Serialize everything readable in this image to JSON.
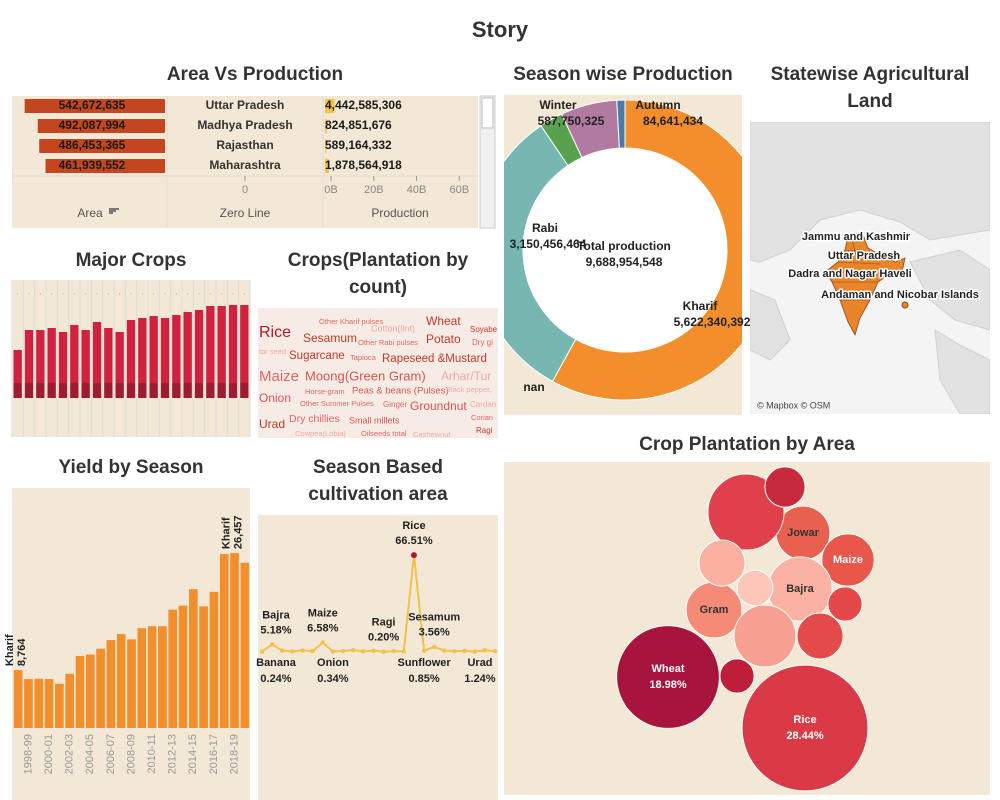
{
  "title": "Story",
  "chart_data": [
    {
      "type": "hbar",
      "title": "Area Vs Production",
      "categories": [
        "Uttar Pradesh",
        "Madhya Pradesh",
        "Rajasthan",
        "Maharashtra"
      ],
      "series": [
        {
          "name": "Area",
          "color": "#c4461f",
          "values": [
            542672635,
            492087994,
            486453365,
            461939552
          ],
          "value_labels": [
            "542,672,635",
            "492,087,994",
            "486,453,365",
            "461,939,552"
          ]
        },
        {
          "name": "Production",
          "color": "#f5c342",
          "values": [
            4442585306,
            824851676,
            589164332,
            1878564918
          ],
          "value_labels": [
            "4,442,585,306",
            "824,851,676",
            "589,164,332",
            "1,878,564,918"
          ]
        }
      ],
      "zero_line": "Zero Line",
      "zero_ticks": [
        0
      ],
      "xlim": [
        0,
        65000000000
      ],
      "xticks": [
        {
          "value": 0,
          "label": "0B"
        },
        {
          "value": 20000000000,
          "label": "20B"
        },
        {
          "value": 40000000000,
          "label": "40B"
        },
        {
          "value": 60000000000,
          "label": "60B"
        }
      ],
      "x2lim": [
        0,
        580000000
      ]
    },
    {
      "type": "stacked",
      "title": "Major Crops",
      "categories": [
        null,
        null,
        null,
        null,
        null,
        null,
        null,
        null,
        null,
        null,
        null,
        null,
        null,
        null,
        null,
        null,
        null,
        null,
        null,
        null,
        null
      ],
      "series": [
        {
          "color": "#9e1b32",
          "values": [
            15,
            15,
            15,
            15,
            15,
            15,
            15,
            15,
            15,
            15,
            15,
            15,
            15,
            15,
            15,
            15,
            15,
            15,
            15,
            15,
            15
          ]
        },
        {
          "color": "#d0223f",
          "values": [
            33,
            53,
            53,
            55,
            51,
            58,
            53,
            61,
            55,
            51,
            63,
            65,
            67,
            65,
            68,
            71,
            73,
            77,
            77,
            78,
            78
          ]
        }
      ],
      "ylim": [
        0,
        100
      ]
    },
    {
      "type": "wordcloud",
      "title": "Crops(Plantation by count)",
      "words": [
        "Rice",
        "Sesamum",
        "Cotton(lint)",
        "Wheat",
        "Soyabe",
        "Other Kharif pulses",
        "Potato",
        "Other Rabi pulses",
        "Dry gi",
        "tor seed",
        "Sugarcane",
        "Tapioca",
        "Rapeseed &Mustard",
        "Maize",
        "Moong(Green Gram)",
        "Arhar/Tur",
        "Horse-gram",
        "Peas & beans (Pulses)",
        "Black pepper,",
        "Onion",
        "Other Summer Pulses",
        "Ginger",
        "Groundnut",
        "Cardan",
        "Dry chillies",
        "Small millets",
        "Corian",
        "Urad",
        "Cowpea(Lobia)",
        "Oilseeds total",
        "Cashewnut",
        "Ragi"
      ],
      "values": [
        160,
        120,
        90,
        120,
        80,
        75,
        120,
        75,
        80,
        75,
        115,
        75,
        115,
        150,
        130,
        120,
        75,
        95,
        75,
        120,
        75,
        80,
        120,
        80,
        105,
        90,
        75,
        120,
        75,
        75,
        75,
        80
      ],
      "colors": [
        "#b2182b",
        "#c0392b",
        "#f1a7a7",
        "#c0392b",
        "#c0392b",
        "#e06666",
        "#c0392b",
        "#e06666",
        "#e06666",
        "#f1a7a7",
        "#c0392b",
        "#e06666",
        "#c0392b",
        "#e06666",
        "#d9534f",
        "#f1a7a7",
        "#e06666",
        "#d9534f",
        "#f1a7a7",
        "#d9534f",
        "#e06666",
        "#e06666",
        "#d9534f",
        "#f1a7a7",
        "#e06666",
        "#d9534f",
        "#e06666",
        "#c0392b",
        "#f1a7a7",
        "#e06666",
        "#f1a7a7",
        "#c0392b"
      ]
    },
    {
      "type": "donut",
      "title": "Season wise Production",
      "categories": [
        "Kharif",
        "nan",
        "Rabi",
        null,
        "Winter",
        "Autumn"
      ],
      "values": [
        5622340392,
        0,
        3150456464,
        243765933,
        587750325,
        84641434
      ],
      "value_labels": [
        "5,622,340,392",
        null,
        "3,150,456,464",
        null,
        "587,750,325",
        "84,641,434"
      ],
      "colors": [
        "#f28e2b",
        "#e15759",
        "#76b7b2",
        "#59a14f",
        "#b07aa1",
        "#4e79a7"
      ],
      "center_label": "Total production",
      "total": 9688954548,
      "total_label": "9,688,954,548"
    },
    {
      "type": "map",
      "title": "Statewise Agricultural Land",
      "labels": [
        "Jammu and Kashmir",
        "Uttar Pradesh",
        "Dadra and Nagar Haveli",
        "Andaman and Nicobar Islands"
      ],
      "attribution": "© Mapbox © OSM",
      "color": "#e8842a"
    },
    {
      "type": "bar",
      "title": "Yield by Season",
      "categories": [
        null,
        "1998-99",
        null,
        "2000-01",
        null,
        "2002-03",
        null,
        "2004-05",
        null,
        "2006-07",
        null,
        "2008-09",
        null,
        "2010-11",
        null,
        "2012-13",
        null,
        "2014-15",
        null,
        "2016-17",
        null,
        "2018-19",
        null
      ],
      "values": [
        8764,
        7400,
        7450,
        7400,
        6700,
        8200,
        10900,
        11100,
        12000,
        13300,
        14200,
        13400,
        15100,
        15400,
        15400,
        17900,
        18500,
        21000,
        18400,
        20600,
        26300,
        26457,
        25000
      ],
      "value_labels": [
        "8,764",
        null,
        null,
        null,
        null,
        null,
        null,
        null,
        null,
        null,
        null,
        null,
        null,
        null,
        null,
        null,
        null,
        null,
        null,
        null,
        null,
        "26,457",
        null
      ],
      "season_labels": [
        "Kharif",
        null,
        null,
        null,
        null,
        null,
        null,
        null,
        null,
        null,
        null,
        null,
        null,
        null,
        null,
        null,
        null,
        null,
        null,
        null,
        null,
        "Kharif",
        null
      ],
      "color": "#f28e2b",
      "ylim": [
        0,
        36000
      ]
    },
    {
      "type": "line",
      "title": "Season Based cultivation area",
      "categories": [
        "Banana",
        "Bajra",
        null,
        null,
        null,
        null,
        "Maize",
        "Onion",
        null,
        null,
        null,
        null,
        "Ragi",
        null,
        null,
        "Rice",
        "Sunflower",
        "Sesamum",
        null,
        null,
        null,
        null,
        "Urad",
        null
      ],
      "values": [
        0.24,
        5.18,
        0.9,
        0.4,
        1.1,
        0.6,
        6.58,
        0.34,
        0.7,
        1.3,
        0.5,
        0.9,
        0.2,
        0.6,
        0.4,
        66.51,
        0.85,
        3.56,
        1.0,
        0.5,
        0.8,
        0.3,
        1.24,
        0.6
      ],
      "value_labels": [
        "0.24%",
        "5.18%",
        null,
        null,
        null,
        null,
        "6.58%",
        "0.34%",
        null,
        null,
        null,
        null,
        "0.20%",
        null,
        null,
        "66.51%",
        "0.85%",
        "3.56%",
        null,
        null,
        null,
        null,
        "1.24%",
        null
      ],
      "color": "#f0c24a",
      "ylim": [
        0,
        70
      ]
    },
    {
      "type": "bubble",
      "title": "Crop Plantation by Area",
      "categories": [
        "Rice",
        "Wheat",
        "Jowar",
        "Maize",
        "Bajra",
        "Gram",
        null,
        null,
        null,
        null,
        null,
        null,
        null,
        null
      ],
      "values": [
        28.44,
        18.98,
        5.2,
        4.9,
        7.4,
        5.6,
        10.4,
        2.9,
        3.8,
        2.3,
        6.9,
        3.8,
        2.1,
        2.1
      ],
      "value_labels": [
        "28.44%",
        "18.98%",
        null,
        null,
        null,
        null,
        null,
        null,
        null,
        null,
        null,
        null,
        null,
        null
      ],
      "colors": [
        "#d93a46",
        "#a8153c",
        "#e8604f",
        "#e9564a",
        "#fbb2a5",
        "#f58a76",
        "#e0404c",
        "#c72a3c",
        "#fbb0a0",
        "#fdc7b9",
        "#f9a190",
        "#e34b4a",
        "#e54848",
        "#be1e3a"
      ]
    }
  ]
}
